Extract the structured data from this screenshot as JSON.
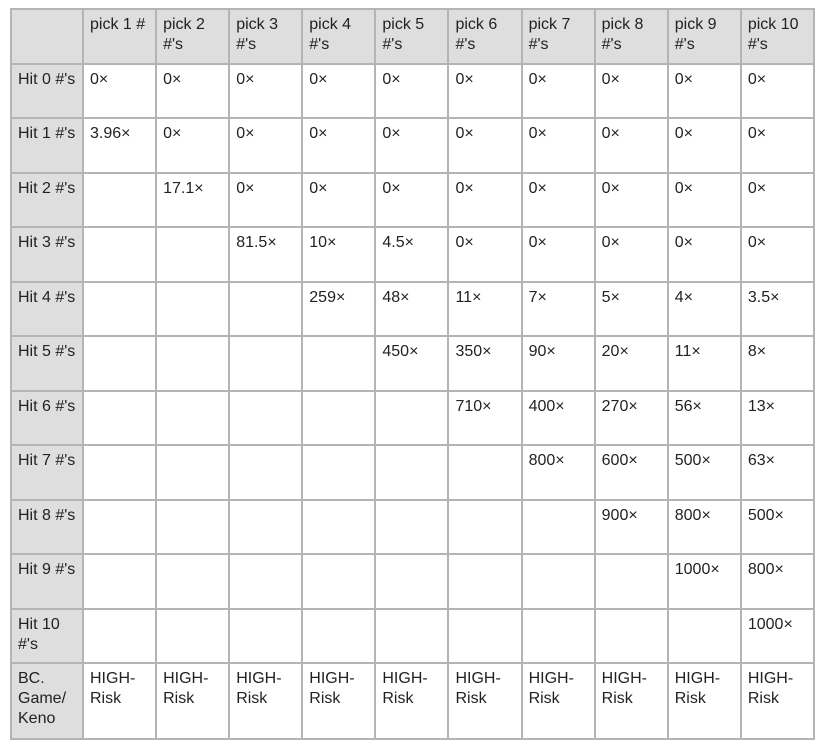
{
  "table": {
    "headers": [
      "",
      "pick 1 #",
      "pick 2 #'s",
      "pick 3 #'s",
      "pick 4 #'s",
      "pick 5 #'s",
      "pick 6 #'s",
      "pick 7 #'s",
      "pick 8 #'s",
      "pick 9 #'s",
      "pick 10 #'s"
    ],
    "rows": [
      {
        "label": "Hit 0 #'s",
        "cells": [
          "0×",
          "0×",
          "0×",
          "0×",
          "0×",
          "0×",
          "0×",
          "0×",
          "0×",
          "0×"
        ]
      },
      {
        "label": "Hit 1 #'s",
        "cells": [
          "3.96×",
          "0×",
          "0×",
          "0×",
          "0×",
          "0×",
          "0×",
          "0×",
          "0×",
          "0×"
        ]
      },
      {
        "label": "Hit 2 #'s",
        "cells": [
          "",
          "17.1×",
          "0×",
          "0×",
          "0×",
          "0×",
          "0×",
          "0×",
          "0×",
          "0×"
        ]
      },
      {
        "label": "Hit 3 #'s",
        "cells": [
          "",
          "",
          "81.5×",
          "10×",
          "4.5×",
          "0×",
          "0×",
          "0×",
          "0×",
          "0×"
        ]
      },
      {
        "label": "Hit 4 #'s",
        "cells": [
          "",
          "",
          "",
          "259×",
          "48×",
          "11×",
          "7×",
          "5×",
          "4×",
          "3.5×"
        ]
      },
      {
        "label": "Hit 5 #'s",
        "cells": [
          "",
          "",
          "",
          "",
          "450×",
          "350×",
          "90×",
          "20×",
          "11×",
          "8×"
        ]
      },
      {
        "label": "Hit 6 #'s",
        "cells": [
          "",
          "",
          "",
          "",
          "",
          "710×",
          "400×",
          "270×",
          "56×",
          "13×"
        ]
      },
      {
        "label": "Hit 7 #'s",
        "cells": [
          "",
          "",
          "",
          "",
          "",
          "",
          "800×",
          "600×",
          "500×",
          "63×"
        ]
      },
      {
        "label": "Hit 8 #'s",
        "cells": [
          "",
          "",
          "",
          "",
          "",
          "",
          "",
          "900×",
          "800×",
          "500×"
        ]
      },
      {
        "label": "Hit 9 #'s",
        "cells": [
          "",
          "",
          "",
          "",
          "",
          "",
          "",
          "",
          "1000×",
          "800×"
        ]
      },
      {
        "label": "Hit 10 #'s",
        "cells": [
          "",
          "",
          "",
          "",
          "",
          "",
          "",
          "",
          "",
          "1000×"
        ]
      },
      {
        "label": "BC. Game/ Keno",
        "cells": [
          "HIGH- Risk",
          "HIGH- Risk",
          "HIGH- Risk",
          "HIGH- Risk",
          "HIGH- Risk",
          "HIGH- Risk",
          "HIGH- Risk",
          "HIGH- Risk",
          "HIGH- Risk",
          "HIGH- Risk"
        ]
      }
    ]
  }
}
